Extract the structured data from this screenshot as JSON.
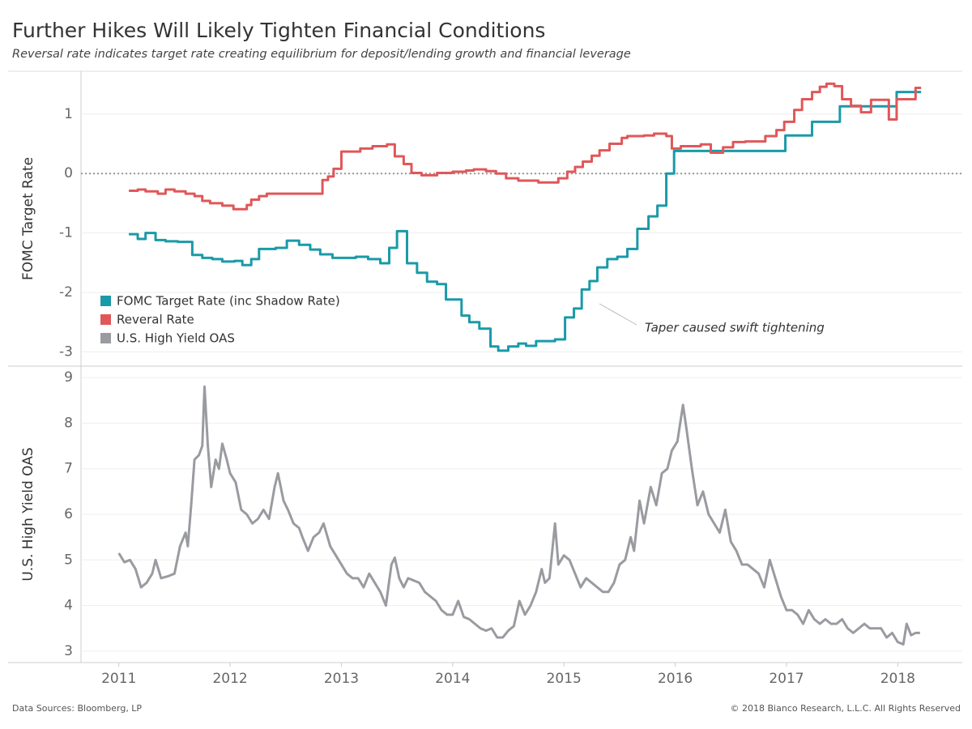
{
  "title": "Further Hikes Will Likely Tighten Financial Conditions",
  "subtitle": "Reversal rate indicates target rate creating equilibrium for deposit/lending growth and financial leverage",
  "footer_left": "Data Sources: Bloomberg, LP",
  "footer_right": "© 2018 Bianco Research, L.L.C. All Rights Reserved",
  "chart_data": [
    {
      "type": "line",
      "step": true,
      "y_label": "FOMC Target Rate",
      "xlim": [
        2010.66,
        2018.58
      ],
      "ylim": [
        -3.24,
        1.72
      ],
      "yticks": [
        -3,
        -2,
        -1,
        0,
        1
      ],
      "grid": true,
      "reference_line": 0,
      "legend": "bottom-left",
      "annotation": "Taper caused swift tightening",
      "series": [
        {
          "name": "FOMC Target Rate (inc Shadow Rate)",
          "color": "#1a9aa8",
          "x": [
            2011.09,
            2011.17,
            2011.24,
            2011.33,
            2011.42,
            2011.53,
            2011.66,
            2011.75,
            2011.84,
            2011.93,
            2012.04,
            2012.11,
            2012.19,
            2012.26,
            2012.41,
            2012.51,
            2012.62,
            2012.72,
            2012.81,
            2012.92,
            2013.13,
            2013.24,
            2013.35,
            2013.43,
            2013.5,
            2013.59,
            2013.68,
            2013.77,
            2013.86,
            2013.94,
            2014.08,
            2014.15,
            2014.24,
            2014.34,
            2014.41,
            2014.5,
            2014.59,
            2014.66,
            2014.75,
            2014.92,
            2015.01,
            2015.09,
            2015.16,
            2015.23,
            2015.3,
            2015.39,
            2015.48,
            2015.57,
            2015.66,
            2015.76,
            2015.84,
            2015.92,
            2015.99,
            2016.99,
            2017.23,
            2017.48,
            2017.99,
            2018.21
          ],
          "values": [
            -1.02,
            -1.1,
            -1.0,
            -1.12,
            -1.14,
            -1.15,
            -1.37,
            -1.42,
            -1.44,
            -1.48,
            -1.47,
            -1.54,
            -1.44,
            -1.27,
            -1.25,
            -1.13,
            -1.2,
            -1.28,
            -1.36,
            -1.42,
            -1.4,
            -1.44,
            -1.51,
            -1.25,
            -0.97,
            -1.51,
            -1.67,
            -1.82,
            -1.86,
            -2.12,
            -2.39,
            -2.5,
            -2.61,
            -2.91,
            -2.98,
            -2.91,
            -2.86,
            -2.9,
            -2.82,
            -2.79,
            -2.42,
            -2.27,
            -1.95,
            -1.81,
            -1.58,
            -1.44,
            -1.4,
            -1.27,
            -0.93,
            -0.72,
            -0.54,
            0,
            0.38,
            0.64,
            0.87,
            1.13,
            1.37,
            1.37
          ]
        },
        {
          "name": "Reveral Rate",
          "color": "#e05759",
          "x": [
            2011.09,
            2011.17,
            2011.24,
            2011.35,
            2011.42,
            2011.5,
            2011.6,
            2011.68,
            2011.75,
            2011.82,
            2011.93,
            2012.03,
            2012.15,
            2012.19,
            2012.26,
            2012.33,
            2012.83,
            2012.88,
            2012.93,
            2013.0,
            2013.17,
            2013.28,
            2013.41,
            2013.48,
            2013.56,
            2013.63,
            2013.72,
            2013.86,
            2014.0,
            2014.12,
            2014.19,
            2014.3,
            2014.39,
            2014.48,
            2014.59,
            2014.77,
            2014.95,
            2015.03,
            2015.1,
            2015.17,
            2015.25,
            2015.32,
            2015.41,
            2015.52,
            2015.57,
            2015.72,
            2015.81,
            2015.92,
            2015.97,
            2016.05,
            2016.23,
            2016.32,
            2016.43,
            2016.52,
            2016.63,
            2016.81,
            2016.91,
            2016.98,
            2017.07,
            2017.14,
            2017.23,
            2017.3,
            2017.36,
            2017.43,
            2017.5,
            2017.58,
            2017.67,
            2017.76,
            2017.92,
            2017.99,
            2018.16,
            2018.21
          ],
          "values": [
            -0.29,
            -0.27,
            -0.3,
            -0.34,
            -0.27,
            -0.3,
            -0.34,
            -0.38,
            -0.46,
            -0.5,
            -0.54,
            -0.6,
            -0.53,
            -0.44,
            -0.38,
            -0.34,
            -0.11,
            -0.05,
            0.08,
            0.37,
            0.42,
            0.46,
            0.49,
            0.29,
            0.16,
            0.01,
            -0.03,
            0.01,
            0.03,
            0.05,
            0.07,
            0.04,
            0,
            -0.08,
            -0.12,
            -0.15,
            -0.08,
            0.03,
            0.11,
            0.2,
            0.3,
            0.39,
            0.5,
            0.6,
            0.63,
            0.64,
            0.67,
            0.63,
            0.42,
            0.46,
            0.49,
            0.35,
            0.44,
            0.53,
            0.54,
            0.63,
            0.73,
            0.87,
            1.07,
            1.25,
            1.37,
            1.46,
            1.51,
            1.47,
            1.25,
            1.14,
            1.03,
            1.24,
            0.91,
            1.25,
            1.44,
            1.44
          ]
        }
      ]
    },
    {
      "type": "line",
      "y_label": "U.S. High Yield OAS",
      "xlim": [
        2010.66,
        2018.58
      ],
      "ylim": [
        2.75,
        9.25
      ],
      "yticks": [
        3,
        4,
        5,
        6,
        7,
        8,
        9
      ],
      "grid": true,
      "xticks": [
        2011,
        2012,
        2013,
        2014,
        2015,
        2016,
        2017,
        2018
      ],
      "series": [
        {
          "name": "U.S. High Yield OAS",
          "color": "#999ba0",
          "x": [
            2011.0,
            2011.05,
            2011.1,
            2011.15,
            2011.2,
            2011.25,
            2011.3,
            2011.33,
            2011.38,
            2011.45,
            2011.5,
            2011.55,
            2011.6,
            2011.62,
            2011.65,
            2011.68,
            2011.72,
            2011.75,
            2011.77,
            2011.8,
            2011.83,
            2011.87,
            2011.9,
            2011.93,
            2011.97,
            2012.0,
            2012.05,
            2012.1,
            2012.15,
            2012.2,
            2012.25,
            2012.3,
            2012.35,
            2012.4,
            2012.43,
            2012.48,
            2012.52,
            2012.57,
            2012.62,
            2012.65,
            2012.7,
            2012.75,
            2012.8,
            2012.84,
            2012.9,
            2012.95,
            2013.0,
            2013.05,
            2013.1,
            2013.15,
            2013.2,
            2013.25,
            2013.3,
            2013.35,
            2013.4,
            2013.45,
            2013.48,
            2013.52,
            2013.56,
            2013.6,
            2013.65,
            2013.7,
            2013.75,
            2013.8,
            2013.85,
            2013.9,
            2013.95,
            2014.0,
            2014.05,
            2014.1,
            2014.15,
            2014.2,
            2014.25,
            2014.3,
            2014.35,
            2014.4,
            2014.45,
            2014.5,
            2014.55,
            2014.6,
            2014.65,
            2014.7,
            2014.75,
            2014.8,
            2014.83,
            2014.87,
            2014.92,
            2014.95,
            2015.0,
            2015.05,
            2015.1,
            2015.15,
            2015.2,
            2015.25,
            2015.3,
            2015.35,
            2015.4,
            2015.45,
            2015.5,
            2015.55,
            2015.6,
            2015.63,
            2015.68,
            2015.72,
            2015.78,
            2015.83,
            2015.88,
            2015.93,
            2015.97,
            2016.02,
            2016.07,
            2016.1,
            2016.15,
            2016.2,
            2016.25,
            2016.3,
            2016.35,
            2016.4,
            2016.45,
            2016.5,
            2016.55,
            2016.6,
            2016.65,
            2016.7,
            2016.75,
            2016.8,
            2016.85,
            2016.9,
            2016.95,
            2017.0,
            2017.05,
            2017.1,
            2017.15,
            2017.2,
            2017.25,
            2017.3,
            2017.35,
            2017.4,
            2017.45,
            2017.5,
            2017.55,
            2017.6,
            2017.65,
            2017.7,
            2017.75,
            2017.8,
            2017.85,
            2017.9,
            2017.95,
            2018.0,
            2018.05,
            2018.08,
            2018.12,
            2018.16,
            2018.2
          ],
          "values": [
            5.15,
            4.95,
            5.0,
            4.8,
            4.4,
            4.5,
            4.7,
            5.0,
            4.6,
            4.65,
            4.7,
            5.3,
            5.6,
            5.3,
            6.2,
            7.2,
            7.3,
            7.5,
            8.8,
            7.5,
            6.6,
            7.2,
            7.0,
            7.55,
            7.2,
            6.9,
            6.7,
            6.1,
            6.0,
            5.8,
            5.9,
            6.1,
            5.9,
            6.6,
            6.9,
            6.3,
            6.1,
            5.8,
            5.7,
            5.5,
            5.2,
            5.5,
            5.6,
            5.8,
            5.3,
            5.1,
            4.9,
            4.7,
            4.6,
            4.6,
            4.4,
            4.7,
            4.5,
            4.3,
            4.0,
            4.9,
            5.05,
            4.6,
            4.4,
            4.6,
            4.55,
            4.5,
            4.3,
            4.2,
            4.1,
            3.9,
            3.8,
            3.8,
            4.1,
            3.75,
            3.7,
            3.6,
            3.5,
            3.45,
            3.5,
            3.3,
            3.3,
            3.45,
            3.55,
            4.1,
            3.8,
            4.0,
            4.3,
            4.8,
            4.5,
            4.6,
            5.8,
            4.9,
            5.1,
            5.0,
            4.7,
            4.4,
            4.6,
            4.5,
            4.4,
            4.3,
            4.3,
            4.5,
            4.9,
            5.0,
            5.5,
            5.2,
            6.3,
            5.8,
            6.6,
            6.2,
            6.9,
            7.0,
            7.4,
            7.6,
            8.4,
            7.9,
            7.0,
            6.2,
            6.5,
            6.0,
            5.8,
            5.6,
            6.1,
            5.4,
            5.2,
            4.9,
            4.9,
            4.8,
            4.7,
            4.4,
            5.0,
            4.6,
            4.2,
            3.9,
            3.9,
            3.8,
            3.6,
            3.9,
            3.7,
            3.6,
            3.7,
            3.6,
            3.6,
            3.7,
            3.5,
            3.4,
            3.5,
            3.6,
            3.5,
            3.5,
            3.5,
            3.3,
            3.4,
            3.2,
            3.15,
            3.6,
            3.35,
            3.4,
            3.4
          ]
        }
      ]
    }
  ]
}
